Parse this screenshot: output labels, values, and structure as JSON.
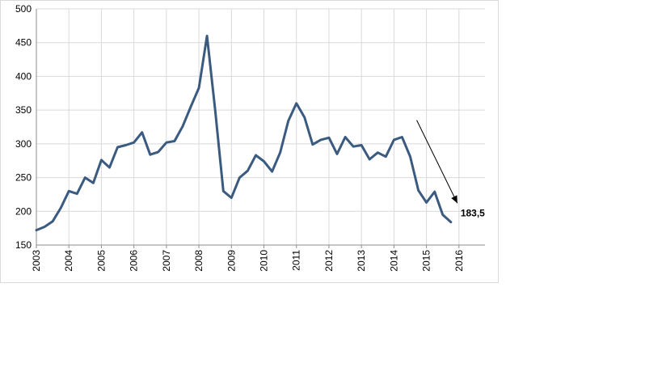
{
  "chart_data": {
    "type": "line",
    "title": "",
    "xlabel": "",
    "ylabel": "",
    "ylim": [
      150,
      500
    ],
    "yticks": [
      150,
      200,
      250,
      300,
      350,
      400,
      450,
      500
    ],
    "xlim": [
      2003,
      2016.8
    ],
    "xticks": [
      "2003",
      "2004",
      "2005",
      "2006",
      "2007",
      "2008",
      "2009",
      "2010",
      "2011",
      "2012",
      "2013",
      "2014",
      "2015",
      "2016"
    ],
    "grid": true,
    "legend": "none",
    "line_color": "#3a5a80",
    "series": [
      {
        "x": [
          2003.0,
          2003.25,
          2003.5,
          2003.75,
          2004.0,
          2004.25,
          2004.5,
          2004.75,
          2005.0,
          2005.25,
          2005.5,
          2005.75,
          2006.0,
          2006.25,
          2006.5,
          2006.75,
          2007.0,
          2007.25,
          2007.5,
          2007.75,
          2008.0,
          2008.25,
          2008.5,
          2008.75,
          2009.0,
          2009.25,
          2009.5,
          2009.75,
          2010.0,
          2010.25,
          2010.5,
          2010.75,
          2011.0,
          2011.25,
          2011.5,
          2011.75,
          2012.0,
          2012.25,
          2012.5,
          2012.75,
          2013.0,
          2013.25,
          2013.5,
          2013.75,
          2014.0,
          2014.25,
          2014.5,
          2014.75,
          2015.0,
          2015.25,
          2015.5,
          2015.75
        ],
        "values": [
          172,
          177,
          185,
          205,
          230,
          226,
          250,
          242,
          276,
          265,
          295,
          298,
          302,
          317,
          284,
          288,
          302,
          304,
          326,
          355,
          383,
          460,
          350,
          230,
          220,
          250,
          260,
          283,
          274,
          259,
          287,
          334,
          360,
          339,
          299,
          306,
          309,
          285,
          310,
          296,
          298,
          277,
          287,
          281,
          306,
          310,
          281,
          231,
          213,
          229,
          195,
          184
        ]
      }
    ],
    "annotation": {
      "label": "183,5",
      "arrow_from": [
        2014.7,
        335
      ],
      "arrow_to": [
        2015.95,
        212
      ]
    }
  }
}
